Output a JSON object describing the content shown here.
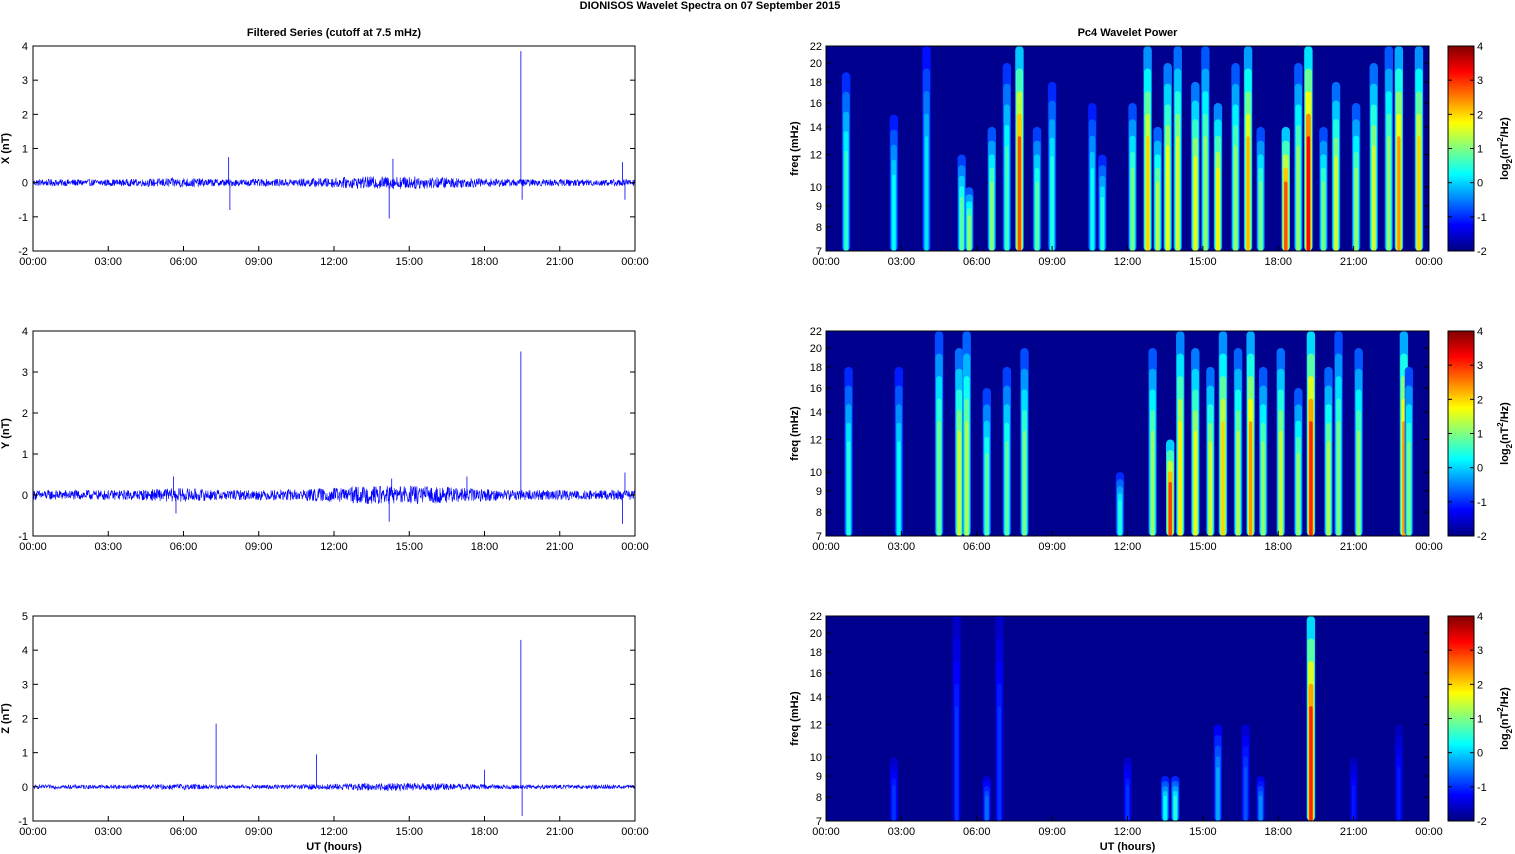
{
  "figure": {
    "title": "DIONISOS Wavelet Spectra on 07 September 2015"
  },
  "colors": {
    "trace": "#0000ff",
    "axis": "#000000",
    "spectrogram_background": "#00008f",
    "colormap": "jet"
  },
  "chart_data": [
    {
      "type": "line",
      "panel": "time-series-x",
      "title": "Filtered Series (cutoff at 7.5 mHz)",
      "xlabel": "",
      "ylabel": "X (nT)",
      "xticks": [
        "00:00",
        "03:00",
        "06:00",
        "09:00",
        "12:00",
        "15:00",
        "18:00",
        "21:00",
        "00:00"
      ],
      "xlim_hours": [
        0,
        24
      ],
      "ylim": [
        -2,
        4
      ],
      "yticks": [
        -2,
        -1,
        0,
        1,
        2,
        3,
        4
      ],
      "baseline_noise_amplitude": 0.1,
      "series": [
        {
          "color": "#0000ff",
          "spikes": [
            {
              "t": 7.8,
              "v": 0.75
            },
            {
              "t": 7.85,
              "v": -0.8
            },
            {
              "t": 14.2,
              "v": -1.05
            },
            {
              "t": 14.35,
              "v": 0.7
            },
            {
              "t": 19.45,
              "v": 3.85
            },
            {
              "t": 19.5,
              "v": -0.5
            },
            {
              "t": 23.5,
              "v": 0.6
            },
            {
              "t": 23.6,
              "v": -0.5
            }
          ]
        }
      ]
    },
    {
      "type": "line",
      "panel": "time-series-y",
      "title": "",
      "xlabel": "",
      "ylabel": "Y (nT)",
      "xticks": [
        "00:00",
        "03:00",
        "06:00",
        "09:00",
        "12:00",
        "15:00",
        "18:00",
        "21:00",
        "00:00"
      ],
      "xlim_hours": [
        0,
        24
      ],
      "ylim": [
        -1,
        4
      ],
      "yticks": [
        -1,
        0,
        1,
        2,
        3,
        4
      ],
      "baseline_noise_amplitude": 0.12,
      "series": [
        {
          "color": "#0000ff",
          "spikes": [
            {
              "t": 5.6,
              "v": 0.45
            },
            {
              "t": 5.7,
              "v": -0.45
            },
            {
              "t": 14.2,
              "v": -0.65
            },
            {
              "t": 14.3,
              "v": 0.4
            },
            {
              "t": 17.3,
              "v": 0.45
            },
            {
              "t": 19.45,
              "v": 3.5
            },
            {
              "t": 23.5,
              "v": -0.7
            },
            {
              "t": 23.6,
              "v": 0.55
            }
          ]
        }
      ]
    },
    {
      "type": "line",
      "panel": "time-series-z",
      "title": "",
      "xlabel": "UT (hours)",
      "ylabel": "Z (nT)",
      "xticks": [
        "00:00",
        "03:00",
        "06:00",
        "09:00",
        "12:00",
        "15:00",
        "18:00",
        "21:00",
        "00:00"
      ],
      "xlim_hours": [
        0,
        24
      ],
      "ylim": [
        -1,
        5
      ],
      "yticks": [
        -1,
        0,
        1,
        2,
        3,
        4,
        5
      ],
      "baseline_noise_amplitude": 0.06,
      "series": [
        {
          "color": "#0000ff",
          "spikes": [
            {
              "t": 7.3,
              "v": 1.85
            },
            {
              "t": 11.3,
              "v": 0.95
            },
            {
              "t": 18.0,
              "v": 0.5
            },
            {
              "t": 19.45,
              "v": 4.3
            },
            {
              "t": 19.5,
              "v": -0.85
            }
          ]
        }
      ]
    },
    {
      "type": "heatmap",
      "panel": "wavelet-x",
      "title": "Pc4 Wavelet Power",
      "xlabel": "",
      "ylabel": "freq (mHz)",
      "colorbar_label": "log2(nT^2/Hz)",
      "xticks": [
        "00:00",
        "03:00",
        "06:00",
        "09:00",
        "12:00",
        "15:00",
        "18:00",
        "21:00",
        "00:00"
      ],
      "xlim_hours": [
        0,
        24
      ],
      "ylim_mhz": [
        7,
        22
      ],
      "yscale": "log",
      "yticks": [
        7,
        8,
        9,
        10,
        12,
        14,
        16,
        18,
        20,
        22
      ],
      "clim": [
        -2,
        4
      ],
      "cticks": [
        -2,
        -1,
        0,
        1,
        2,
        3,
        4
      ],
      "bursts": [
        {
          "t": 0.8,
          "p": 0.9,
          "top": 19
        },
        {
          "t": 2.7,
          "p": 0.6,
          "top": 15
        },
        {
          "t": 4.0,
          "p": 0.4,
          "top": 22
        },
        {
          "t": 5.4,
          "p": 1.2,
          "top": 12
        },
        {
          "t": 5.7,
          "p": 1.6,
          "top": 10
        },
        {
          "t": 6.6,
          "p": 1.5,
          "top": 14
        },
        {
          "t": 7.2,
          "p": 1.0,
          "top": 20
        },
        {
          "t": 7.7,
          "p": 3.5,
          "top": 22
        },
        {
          "t": 8.4,
          "p": 1.2,
          "top": 14
        },
        {
          "t": 9.0,
          "p": 0.8,
          "top": 18
        },
        {
          "t": 10.6,
          "p": 0.6,
          "top": 16
        },
        {
          "t": 11.0,
          "p": 0.8,
          "top": 12
        },
        {
          "t": 12.2,
          "p": 1.4,
          "top": 16
        },
        {
          "t": 12.8,
          "p": 2.6,
          "top": 22
        },
        {
          "t": 13.2,
          "p": 1.8,
          "top": 14
        },
        {
          "t": 13.6,
          "p": 2.2,
          "top": 20
        },
        {
          "t": 14.0,
          "p": 2.0,
          "top": 22
        },
        {
          "t": 14.7,
          "p": 2.2,
          "top": 18
        },
        {
          "t": 15.1,
          "p": 1.6,
          "top": 22
        },
        {
          "t": 15.6,
          "p": 2.4,
          "top": 16
        },
        {
          "t": 16.3,
          "p": 1.6,
          "top": 20
        },
        {
          "t": 16.8,
          "p": 2.8,
          "top": 22
        },
        {
          "t": 17.3,
          "p": 1.4,
          "top": 14
        },
        {
          "t": 18.3,
          "p": 3.5,
          "top": 14
        },
        {
          "t": 18.8,
          "p": 1.6,
          "top": 20
        },
        {
          "t": 19.2,
          "p": 4.0,
          "top": 22
        },
        {
          "t": 19.8,
          "p": 1.4,
          "top": 14
        },
        {
          "t": 20.3,
          "p": 2.0,
          "top": 18
        },
        {
          "t": 21.1,
          "p": 1.6,
          "top": 16
        },
        {
          "t": 21.8,
          "p": 2.0,
          "top": 20
        },
        {
          "t": 22.4,
          "p": 1.6,
          "top": 22
        },
        {
          "t": 22.8,
          "p": 3.0,
          "top": 22
        },
        {
          "t": 23.6,
          "p": 2.6,
          "top": 22
        }
      ]
    },
    {
      "type": "heatmap",
      "panel": "wavelet-y",
      "title": "",
      "xlabel": "",
      "ylabel": "freq (mHz)",
      "colorbar_label": "log2(nT^2/Hz)",
      "xticks": [
        "00:00",
        "03:00",
        "06:00",
        "09:00",
        "12:00",
        "15:00",
        "18:00",
        "21:00",
        "00:00"
      ],
      "xlim_hours": [
        0,
        24
      ],
      "ylim_mhz": [
        7,
        22
      ],
      "yscale": "log",
      "yticks": [
        7,
        8,
        9,
        10,
        12,
        14,
        16,
        18,
        20,
        22
      ],
      "clim": [
        -2,
        4
      ],
      "cticks": [
        -2,
        -1,
        0,
        1,
        2,
        3,
        4
      ],
      "bursts": [
        {
          "t": 0.9,
          "p": 0.8,
          "top": 18
        },
        {
          "t": 2.9,
          "p": 0.6,
          "top": 18
        },
        {
          "t": 4.5,
          "p": 1.4,
          "top": 22
        },
        {
          "t": 5.3,
          "p": 2.0,
          "top": 20
        },
        {
          "t": 5.6,
          "p": 1.8,
          "top": 22
        },
        {
          "t": 6.4,
          "p": 1.2,
          "top": 16
        },
        {
          "t": 7.2,
          "p": 1.2,
          "top": 18
        },
        {
          "t": 7.9,
          "p": 1.4,
          "top": 20
        },
        {
          "t": 11.7,
          "p": 0.8,
          "top": 10
        },
        {
          "t": 13.0,
          "p": 1.6,
          "top": 20
        },
        {
          "t": 13.7,
          "p": 3.6,
          "top": 12
        },
        {
          "t": 14.1,
          "p": 2.4,
          "top": 22
        },
        {
          "t": 14.7,
          "p": 2.2,
          "top": 20
        },
        {
          "t": 15.3,
          "p": 2.0,
          "top": 18
        },
        {
          "t": 15.8,
          "p": 2.6,
          "top": 22
        },
        {
          "t": 16.4,
          "p": 1.8,
          "top": 20
        },
        {
          "t": 16.9,
          "p": 3.0,
          "top": 22
        },
        {
          "t": 17.4,
          "p": 1.6,
          "top": 18
        },
        {
          "t": 18.1,
          "p": 2.0,
          "top": 20
        },
        {
          "t": 18.8,
          "p": 1.6,
          "top": 16
        },
        {
          "t": 19.3,
          "p": 3.8,
          "top": 22
        },
        {
          "t": 20.0,
          "p": 1.8,
          "top": 18
        },
        {
          "t": 20.4,
          "p": 1.4,
          "top": 22
        },
        {
          "t": 21.2,
          "p": 1.6,
          "top": 20
        },
        {
          "t": 23.0,
          "p": 3.0,
          "top": 22
        },
        {
          "t": 23.2,
          "p": 1.4,
          "top": 18
        }
      ]
    },
    {
      "type": "heatmap",
      "panel": "wavelet-z",
      "title": "",
      "xlabel": "UT (hours)",
      "ylabel": "freq (mHz)",
      "colorbar_label": "log2(nT^2/Hz)",
      "xticks": [
        "00:00",
        "03:00",
        "06:00",
        "09:00",
        "12:00",
        "15:00",
        "18:00",
        "21:00",
        "00:00"
      ],
      "xlim_hours": [
        0,
        24
      ],
      "ylim_mhz": [
        7,
        22
      ],
      "yscale": "log",
      "yticks": [
        7,
        8,
        9,
        10,
        12,
        14,
        16,
        18,
        20,
        22
      ],
      "clim": [
        -2,
        4
      ],
      "cticks": [
        -2,
        -1,
        0,
        1,
        2,
        3,
        4
      ],
      "bursts": [
        {
          "t": 2.7,
          "p": -0.8,
          "top": 10
        },
        {
          "t": 5.2,
          "p": -0.8,
          "top": 22
        },
        {
          "t": 6.4,
          "p": -0.4,
          "top": 9
        },
        {
          "t": 6.9,
          "p": -0.8,
          "top": 22
        },
        {
          "t": 12.0,
          "p": -0.8,
          "top": 10
        },
        {
          "t": 13.5,
          "p": 0.6,
          "top": 9
        },
        {
          "t": 13.9,
          "p": 0.8,
          "top": 9
        },
        {
          "t": 15.6,
          "p": 0.0,
          "top": 12
        },
        {
          "t": 16.7,
          "p": -0.6,
          "top": 12
        },
        {
          "t": 17.3,
          "p": -0.2,
          "top": 9
        },
        {
          "t": 19.3,
          "p": 3.8,
          "top": 22
        },
        {
          "t": 21.0,
          "p": -1.0,
          "top": 10
        },
        {
          "t": 22.8,
          "p": -1.0,
          "top": 12
        }
      ]
    }
  ]
}
